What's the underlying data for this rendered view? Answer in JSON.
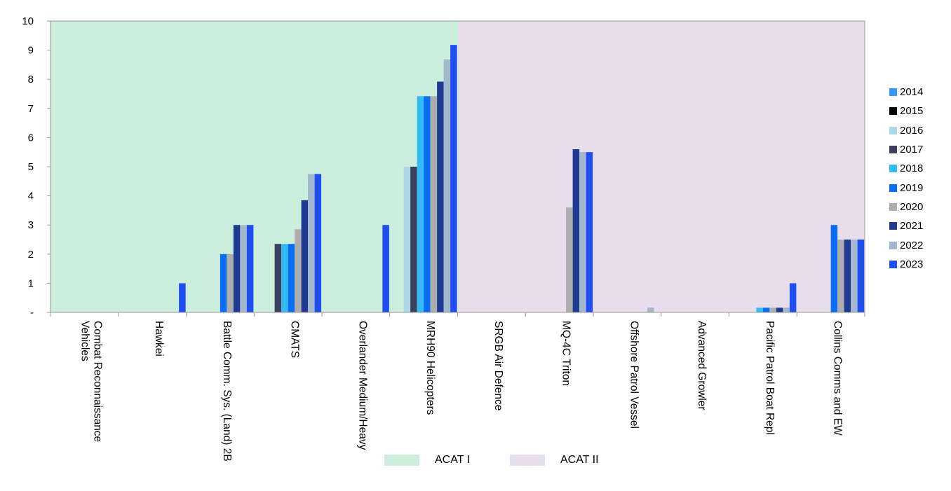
{
  "chart_data": {
    "type": "bar",
    "categories": [
      "Combat Reconnaissance Vehicles",
      "Hawkei",
      "Battle Comm. Sys. (Land) 2B",
      "CMATS",
      "Overlander Medium/Heavy",
      "MRH90 Helicopters",
      "SRGB Air Defence",
      "MQ-4C Triton",
      "Offshore Patrol Vessel",
      "Advanced Growler",
      "Pacific Patrol Boat Repl",
      "Collins Comms and EW"
    ],
    "category_lines": [
      [
        "Combat Reconnaissance",
        "Vehicles"
      ],
      [
        "Hawkei"
      ],
      [
        "Battle Comm. Sys. (Land) 2B"
      ],
      [
        "CMATS"
      ],
      [
        "Overlander Medium/Heavy"
      ],
      [
        "MRH90 Helicopters"
      ],
      [
        "SRGB Air Defence"
      ],
      [
        "MQ-4C Triton"
      ],
      [
        "Offshore Patrol Vessel"
      ],
      [
        "Advanced Growler"
      ],
      [
        "Pacific Patrol Boat Repl"
      ],
      [
        "Collins Comms and EW"
      ]
    ],
    "series": [
      {
        "name": "2014",
        "color": "#3399FF",
        "values": [
          0,
          0,
          0,
          0,
          0,
          0,
          0,
          0,
          0,
          0,
          0,
          0
        ]
      },
      {
        "name": "2015",
        "color": "#000000",
        "values": [
          0,
          0,
          0,
          0,
          0,
          0,
          0,
          0,
          0,
          0,
          0,
          0
        ]
      },
      {
        "name": "2016",
        "color": "#ADD8E6",
        "values": [
          0,
          0,
          0,
          0,
          0,
          5.0,
          0,
          0,
          0,
          0,
          0,
          0
        ]
      },
      {
        "name": "2017",
        "color": "#3C3F5E",
        "values": [
          0,
          0,
          0,
          2.35,
          0,
          5.0,
          0,
          0,
          0,
          0,
          0,
          0
        ]
      },
      {
        "name": "2018",
        "color": "#33BBF5",
        "values": [
          0,
          0,
          0,
          2.35,
          0,
          7.42,
          0,
          0,
          0,
          0,
          0.16,
          0
        ]
      },
      {
        "name": "2019",
        "color": "#0A6DF5",
        "values": [
          0,
          0,
          2.0,
          2.35,
          0,
          7.42,
          0,
          0,
          0,
          0,
          0.16,
          3.0
        ]
      },
      {
        "name": "2020",
        "color": "#ADADAD",
        "values": [
          0,
          0,
          2.0,
          2.85,
          0,
          7.42,
          0,
          3.6,
          0,
          0,
          0.16,
          2.5
        ]
      },
      {
        "name": "2021",
        "color": "#1F3A93",
        "values": [
          0,
          0,
          3.0,
          3.85,
          0,
          7.92,
          0,
          5.6,
          0,
          0,
          0.16,
          2.5
        ]
      },
      {
        "name": "2022",
        "color": "#A3B8CC",
        "values": [
          0,
          0,
          3.0,
          4.75,
          0,
          8.68,
          0,
          5.5,
          0.16,
          0,
          0.16,
          2.5
        ]
      },
      {
        "name": "2023",
        "color": "#1F4FF2",
        "values": [
          0,
          1.0,
          3.0,
          4.75,
          3.0,
          9.18,
          0,
          5.5,
          0,
          0,
          1.0,
          2.5
        ]
      }
    ],
    "ylim": [
      0,
      10
    ],
    "yticks": [
      "-",
      "1",
      "2",
      "3",
      "4",
      "5",
      "6",
      "7",
      "8",
      "9",
      "10"
    ],
    "bands": [
      {
        "label": "ACAT I",
        "color": "#CCEEDD",
        "from_category": 0,
        "to_category": 5
      },
      {
        "label": "ACAT II",
        "color": "#E8DDEC",
        "from_category": 6,
        "to_category": 11
      }
    ],
    "legend_position": "right",
    "grid": false
  }
}
